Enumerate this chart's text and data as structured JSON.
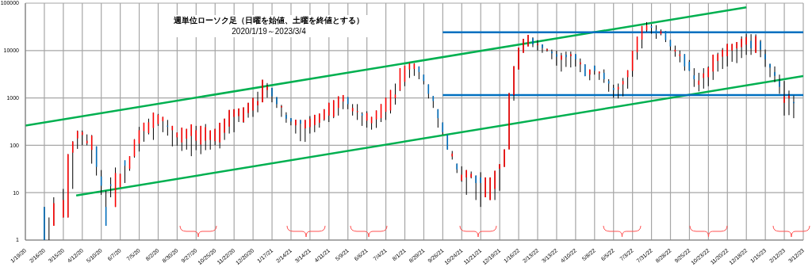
{
  "chart_data": {
    "type": "candlestick",
    "title": "週単位ローソク足（日曜を始値、土曜を終値とする）",
    "subtitle": "2020/1/19～2023/3/4",
    "xlim": [
      "2020-01-19",
      "2023-03-12"
    ],
    "xticks": [
      {
        "value": "2020-01-19",
        "label": "1/19/20"
      },
      {
        "value": "2020-02-16",
        "label": "2/16/20"
      },
      {
        "value": "2020-03-15",
        "label": "3/15/20"
      },
      {
        "value": "2020-04-12",
        "label": "4/12/20"
      },
      {
        "value": "2020-05-10",
        "label": "5/10/20"
      },
      {
        "value": "2020-06-07",
        "label": "6/7/20"
      },
      {
        "value": "2020-07-05",
        "label": "7/5/20"
      },
      {
        "value": "2020-08-02",
        "label": "8/2/20"
      },
      {
        "value": "2020-08-30",
        "label": "8/30/20"
      },
      {
        "value": "2020-09-27",
        "label": "9/27/20"
      },
      {
        "value": "2020-10-25",
        "label": "10/25/20"
      },
      {
        "value": "2020-11-22",
        "label": "11/22/20"
      },
      {
        "value": "2020-12-20",
        "label": "12/20/20"
      },
      {
        "value": "2021-01-17",
        "label": "1/17/21"
      },
      {
        "value": "2021-02-14",
        "label": "2/14/21"
      },
      {
        "value": "2021-03-14",
        "label": "3/14/21"
      },
      {
        "value": "2021-04-11",
        "label": "4/11/21"
      },
      {
        "value": "2021-05-09",
        "label": "5/9/21"
      },
      {
        "value": "2021-06-06",
        "label": "6/6/21"
      },
      {
        "value": "2021-07-04",
        "label": "7/4/21"
      },
      {
        "value": "2021-08-01",
        "label": "8/1/21"
      },
      {
        "value": "2021-08-29",
        "label": "8/29/21"
      },
      {
        "value": "2021-09-26",
        "label": "9/26/21"
      },
      {
        "value": "2021-10-24",
        "label": "10/24/21"
      },
      {
        "value": "2021-11-21",
        "label": "11/21/21"
      },
      {
        "value": "2021-12-19",
        "label": "12/19/21"
      },
      {
        "value": "2022-01-16",
        "label": "1/16/22"
      },
      {
        "value": "2022-02-13",
        "label": "2/13/22"
      },
      {
        "value": "2022-03-13",
        "label": "3/13/22"
      },
      {
        "value": "2022-04-10",
        "label": "4/10/22"
      },
      {
        "value": "2022-05-08",
        "label": "5/8/22"
      },
      {
        "value": "2022-06-05",
        "label": "6/5/22"
      },
      {
        "value": "2022-07-03",
        "label": "7/3/22"
      },
      {
        "value": "2022-07-31",
        "label": "7/31/22"
      },
      {
        "value": "2022-08-28",
        "label": "8/28/22"
      },
      {
        "value": "2022-09-25",
        "label": "9/25/22"
      },
      {
        "value": "2022-10-23",
        "label": "10/23/22"
      },
      {
        "value": "2022-11-20",
        "label": "11/20/22"
      },
      {
        "value": "2022-12-18",
        "label": "12/18/22"
      },
      {
        "value": "2023-01-15",
        "label": "1/15/23"
      },
      {
        "value": "2023-02-12",
        "label": "2/12/23"
      },
      {
        "value": "2023-03-12",
        "label": "3/12/23"
      }
    ],
    "ylim": [
      1,
      100000
    ],
    "yticks": [
      1,
      10,
      100,
      1000,
      10000,
      100000
    ],
    "log": true,
    "grid": true,
    "series": [
      {
        "type": "candlestick",
        "x": [
          "2020-02-16",
          "2020-02-23",
          "2020-03-01",
          "2020-03-15",
          "2020-03-22",
          "2020-03-29",
          "2020-04-05",
          "2020-04-12",
          "2020-04-19",
          "2020-04-26",
          "2020-05-03",
          "2020-05-10",
          "2020-05-17",
          "2020-05-24",
          "2020-05-31",
          "2020-06-07",
          "2020-06-14",
          "2020-06-21",
          "2020-06-28",
          "2020-07-05",
          "2020-07-12",
          "2020-07-19",
          "2020-07-26",
          "2020-08-02",
          "2020-08-09",
          "2020-08-16",
          "2020-08-23",
          "2020-08-30",
          "2020-09-06",
          "2020-09-13",
          "2020-09-20",
          "2020-09-27",
          "2020-10-04",
          "2020-10-11",
          "2020-10-18",
          "2020-10-25",
          "2020-11-01",
          "2020-11-08",
          "2020-11-15",
          "2020-11-22",
          "2020-11-29",
          "2020-12-06",
          "2020-12-13",
          "2020-12-20",
          "2020-12-27",
          "2021-01-03",
          "2021-01-10",
          "2021-01-17",
          "2021-01-24",
          "2021-01-31",
          "2021-02-07",
          "2021-02-14",
          "2021-02-21",
          "2021-02-28",
          "2021-03-07",
          "2021-03-14",
          "2021-03-21",
          "2021-03-28",
          "2021-04-04",
          "2021-04-11",
          "2021-04-18",
          "2021-04-25",
          "2021-05-02",
          "2021-05-09",
          "2021-05-16",
          "2021-05-23",
          "2021-05-30",
          "2021-06-06",
          "2021-06-13",
          "2021-06-20",
          "2021-06-27",
          "2021-07-04",
          "2021-07-11",
          "2021-07-18",
          "2021-07-25",
          "2021-08-01",
          "2021-08-08",
          "2021-08-15",
          "2021-08-22",
          "2021-08-29",
          "2021-09-05",
          "2021-09-12",
          "2021-09-19",
          "2021-09-26",
          "2021-10-03",
          "2021-10-10",
          "2021-10-17",
          "2021-10-24",
          "2021-10-31",
          "2021-11-07",
          "2021-11-14",
          "2021-11-21",
          "2021-11-28",
          "2021-12-05",
          "2021-12-12",
          "2021-12-19",
          "2021-12-26",
          "2022-01-02",
          "2022-01-09",
          "2022-01-16",
          "2022-01-23",
          "2022-01-30",
          "2022-02-06",
          "2022-02-13",
          "2022-02-20",
          "2022-02-27",
          "2022-03-06",
          "2022-03-13",
          "2022-03-20",
          "2022-03-27",
          "2022-04-03",
          "2022-04-10",
          "2022-04-17",
          "2022-04-24",
          "2022-05-01",
          "2022-05-08",
          "2022-05-15",
          "2022-05-22",
          "2022-05-29",
          "2022-06-05",
          "2022-06-12",
          "2022-06-19",
          "2022-06-26",
          "2022-07-03",
          "2022-07-10",
          "2022-07-17",
          "2022-07-24",
          "2022-07-31",
          "2022-08-07",
          "2022-08-14",
          "2022-08-21",
          "2022-08-28",
          "2022-09-04",
          "2022-09-11",
          "2022-09-18",
          "2022-09-25",
          "2022-10-02",
          "2022-10-09",
          "2022-10-16",
          "2022-10-23",
          "2022-10-30",
          "2022-11-06",
          "2022-11-13",
          "2022-11-20",
          "2022-11-27",
          "2022-12-04",
          "2022-12-11",
          "2022-12-18",
          "2022-12-25",
          "2023-01-01",
          "2023-01-08",
          "2023-01-15",
          "2023-01-22",
          "2023-01-29",
          "2023-02-05",
          "2023-02-12",
          "2023-02-19",
          "2023-02-26"
        ],
        "ohlc": [
          [
            5,
            5,
            1,
            1
          ],
          [
            1,
            3,
            1,
            1
          ],
          [
            2,
            8,
            2,
            6
          ],
          [
            3,
            12,
            3,
            7
          ],
          [
            3,
            65,
            3,
            65
          ],
          [
            70,
            122,
            12,
            120
          ],
          [
            140,
            205,
            84,
            200
          ],
          [
            165,
            205,
            100,
            190
          ],
          [
            110,
            170,
            100,
            125
          ],
          [
            80,
            165,
            41,
            160
          ],
          [
            95,
            95,
            23,
            35
          ],
          [
            22,
            30,
            9,
            14
          ],
          [
            5,
            11,
            2,
            2
          ],
          [
            15,
            21,
            8,
            14
          ],
          [
            5,
            34,
            5,
            26
          ],
          [
            13,
            25,
            13,
            25
          ],
          [
            48,
            48,
            16,
            37
          ],
          [
            32,
            59,
            29,
            59
          ],
          [
            58,
            135,
            55,
            133
          ],
          [
            108,
            245,
            74,
            208
          ],
          [
            200,
            300,
            119,
            300
          ],
          [
            181,
            365,
            170,
            306
          ],
          [
            233,
            492,
            130,
            490
          ],
          [
            281,
            460,
            257,
            440
          ],
          [
            322,
            398,
            189,
            398
          ],
          [
            260,
            343,
            160,
            255
          ],
          [
            208,
            257,
            95,
            257
          ],
          [
            147,
            186,
            98,
            186
          ],
          [
            115,
            236,
            76,
            236
          ],
          [
            138,
            222,
            81,
            222
          ],
          [
            157,
            277,
            59,
            277
          ],
          [
            125,
            257,
            79,
            208
          ],
          [
            104,
            257,
            65,
            257
          ],
          [
            125,
            281,
            79,
            242
          ],
          [
            130,
            206,
            81,
            206
          ],
          [
            122,
            222,
            100,
            222
          ],
          [
            115,
            299,
            86,
            299
          ],
          [
            184,
            365,
            130,
            365
          ],
          [
            248,
            557,
            177,
            557
          ],
          [
            398,
            578,
            189,
            578
          ],
          [
            413,
            600,
            310,
            600
          ],
          [
            310,
            631,
            299,
            631
          ],
          [
            480,
            789,
            383,
            789
          ],
          [
            543,
            1010,
            398,
            1000
          ],
          [
            697,
            1350,
            498,
            861
          ],
          [
            809,
            2420,
            809,
            2420
          ],
          [
            1470,
            2060,
            1010,
            1770
          ],
          [
            1630,
            1630,
            809,
            1080
          ],
          [
            1040,
            1040,
            615,
            741
          ],
          [
            631,
            714,
            398,
            671
          ],
          [
            440,
            498,
            300,
            365
          ],
          [
            374,
            374,
            264,
            318
          ],
          [
            264,
            347,
            177,
            347
          ],
          [
            343,
            343,
            122,
            285
          ],
          [
            227,
            343,
            118,
            343
          ],
          [
            242,
            413,
            177,
            365
          ],
          [
            267,
            440,
            189,
            440
          ],
          [
            299,
            468,
            236,
            468
          ],
          [
            347,
            578,
            330,
            578
          ],
          [
            424,
            789,
            310,
            789
          ],
          [
            398,
            894,
            374,
            894
          ],
          [
            615,
            1080,
            424,
            1080
          ],
          [
            839,
            1150,
            578,
            1150
          ],
          [
            1040,
            1040,
            578,
            741
          ],
          [
            523,
            741,
            424,
            615
          ],
          [
            520,
            741,
            343,
            530
          ],
          [
            462,
            498,
            257,
            424
          ],
          [
            330,
            523,
            236,
            480
          ],
          [
            292,
            398,
            214,
            398
          ],
          [
            352,
            543,
            233,
            543
          ],
          [
            374,
            741,
            310,
            741
          ],
          [
            510,
            1010,
            343,
            1010
          ],
          [
            543,
            1470,
            470,
            1470
          ],
          [
            988,
            2010,
            723,
            1180
          ],
          [
            1440,
            4240,
            1400,
            4240
          ],
          [
            2190,
            4800,
            1770,
            4800
          ],
          [
            3980,
            5430,
            2640,
            5430
          ],
          [
            4080,
            5400,
            2920,
            5300
          ],
          [
            4620,
            4620,
            2480,
            3520
          ],
          [
            3100,
            3100,
            1930,
            2280
          ],
          [
            1930,
            1930,
            975,
            1220
          ],
          [
            1100,
            1100,
            615,
            861
          ],
          [
            578,
            578,
            236,
            374
          ],
          [
            303,
            303,
            168,
            189
          ],
          [
            168,
            168,
            81,
            81
          ],
          [
            58,
            76,
            50,
            67
          ],
          [
            41,
            41,
            26,
            31
          ],
          [
            18,
            36,
            17,
            24
          ],
          [
            21,
            30,
            9,
            30
          ],
          [
            21,
            28,
            20,
            25
          ],
          [
            23,
            23,
            7,
            16
          ],
          [
            21,
            27,
            5,
            16
          ],
          [
            8,
            21,
            8,
            21
          ],
          [
            7,
            21,
            7,
            21
          ],
          [
            12,
            29,
            7,
            29
          ],
          [
            32,
            40,
            11,
            40
          ],
          [
            35,
            82,
            35,
            82
          ],
          [
            82,
            1270,
            82,
            1270
          ],
          [
            1150,
            4680,
            873,
            4680
          ],
          [
            3980,
            11500,
            3980,
            11500
          ],
          [
            8940,
            17700,
            8940,
            17700
          ],
          [
            12200,
            21400,
            12200,
            21400
          ],
          [
            18200,
            19000,
            11800,
            13500
          ],
          [
            13000,
            16600,
            10000,
            13800
          ],
          [
            13500,
            13500,
            8940,
            11300
          ],
          [
            10000,
            11000,
            9500,
            10800
          ],
          [
            9500,
            10500,
            6550,
            8730
          ],
          [
            8400,
            9900,
            4800,
            7400
          ],
          [
            6380,
            8940,
            3600,
            7890
          ],
          [
            8190,
            9500,
            4510,
            7230
          ],
          [
            7600,
            9500,
            4400,
            8400
          ],
          [
            8400,
            8400,
            4600,
            6550
          ],
          [
            5110,
            6800,
            3500,
            5640
          ],
          [
            5110,
            5110,
            2880,
            2880
          ],
          [
            3100,
            3980,
            2360,
            3980
          ],
          [
            4800,
            4800,
            3100,
            3740
          ],
          [
            3300,
            3600,
            2400,
            3600
          ],
          [
            3390,
            4000,
            2080,
            2480
          ],
          [
            2280,
            2480,
            1350,
            2010
          ],
          [
            1630,
            1900,
            1010,
            1470
          ],
          [
            1510,
            2010,
            975,
            1710
          ],
          [
            1930,
            2640,
            1080,
            2280
          ],
          [
            2740,
            3840,
            1570,
            3840
          ],
          [
            3740,
            9880,
            2800,
            9880
          ],
          [
            9160,
            19600,
            6400,
            19600
          ],
          [
            17100,
            33000,
            11100,
            33000
          ],
          [
            26700,
            39800,
            25000,
            34300
          ],
          [
            33000,
            36000,
            22700,
            30300
          ],
          [
            27400,
            34300,
            17700,
            22700
          ],
          [
            22200,
            28000,
            21000,
            25800
          ],
          [
            25800,
            25800,
            15100,
            16700
          ],
          [
            16700,
            16700,
            10000,
            12200
          ],
          [
            9510,
            12700,
            7410,
            10400
          ],
          [
            7600,
            10000,
            5640,
            8400
          ],
          [
            8400,
            8400,
            3740,
            4620
          ],
          [
            5780,
            6300,
            3740,
            3740
          ],
          [
            2990,
            4240,
            1710,
            2480
          ],
          [
            1890,
            3390,
            1380,
            2330
          ],
          [
            2640,
            4240,
            1570,
            3300
          ],
          [
            2740,
            4620,
            1770,
            4400
          ],
          [
            3600,
            8200,
            2400,
            8200
          ],
          [
            6000,
            9000,
            3600,
            8400
          ],
          [
            7410,
            11300,
            4080,
            10400
          ],
          [
            7600,
            13800,
            4620,
            13800
          ],
          [
            10000,
            13800,
            5780,
            13800
          ],
          [
            11100,
            15100,
            5430,
            15100
          ],
          [
            11800,
            19900,
            6950,
            17700
          ],
          [
            13300,
            22700,
            8100,
            19300
          ],
          [
            16000,
            22200,
            8100,
            11100
          ],
          [
            8940,
            22000,
            8940,
            20100
          ],
          [
            15600,
            16700,
            7230,
            10400
          ],
          [
            8400,
            10500,
            4510,
            6550
          ],
          [
            5240,
            5240,
            2740,
            4360
          ],
          [
            3520,
            4620,
            2150,
            2920
          ],
          [
            2280,
            3100,
            1220,
            1710
          ],
          [
            789,
            2280,
            424,
            1080
          ],
          [
            975,
            1430,
            433,
            1120
          ],
          [
            820,
            1120,
            374,
            790
          ]
        ],
        "colors": [
          "#0070c0",
          "#0070c0",
          "#ff0000",
          "#ff0000",
          "#ff0000",
          "#ff0000",
          "#ff0000",
          "#ff0000",
          "#ff0000",
          "#ff0000",
          "#0070c0",
          "#0070c0",
          "#0070c0",
          "#0070c0",
          "#ff0000",
          "#ff0000",
          "#0070c0",
          "#ff0000",
          "#ff0000",
          "#ff0000",
          "#ff0000",
          "#ff0000",
          "#ff0000",
          "#ff0000",
          "#ff0000",
          "#0070c0",
          "#ff0000",
          "#ff0000",
          "#ff0000",
          "#ff0000",
          "#ff0000",
          "#ff0000",
          "#ff0000",
          "#ff0000",
          "#ff0000",
          "#ff0000",
          "#ff0000",
          "#ff0000",
          "#ff0000",
          "#ff0000",
          "#ff0000",
          "#ff0000",
          "#ff0000",
          "#ff0000",
          "#ff0000",
          "#ff0000",
          "#ff0000",
          "#0070c0",
          "#0070c0",
          "#ff0000",
          "#0070c0",
          "#0070c0",
          "#ff0000",
          "#0070c0",
          "#ff0000",
          "#ff0000",
          "#ff0000",
          "#ff0000",
          "#ff0000",
          "#ff0000",
          "#ff0000",
          "#ff0000",
          "#ff0000",
          "#0070c0",
          "#ff0000",
          "#ff0000",
          "#0070c0",
          "#ff0000",
          "#ff0000",
          "#ff0000",
          "#ff0000",
          "#ff0000",
          "#ff0000",
          "#ff0000",
          "#ff0000",
          "#ff0000",
          "#ff0000",
          "#ff0000",
          "#0070c0",
          "#0070c0",
          "#0070c0",
          "#0070c0",
          "#0070c0",
          "#0070c0",
          "#0070c0",
          "#ff0000",
          "#0070c0",
          "#ff0000",
          "#ff0000",
          "#ff0000",
          "#0070c0",
          "#0070c0",
          "#ff0000",
          "#ff0000",
          "#ff0000",
          "#ff0000",
          "#ff0000",
          "#ff0000",
          "#ff0000",
          "#ff0000",
          "#ff0000",
          "#ff0000",
          "#0070c0",
          "#ff0000",
          "#0070c0",
          "#ff0000",
          "#0070c0",
          "#0070c0",
          "#ff0000",
          "#0070c0",
          "#ff0000",
          "#0070c0",
          "#ff0000",
          "#0070c0",
          "#ff0000",
          "#0070c0",
          "#ff0000",
          "#0070c0",
          "#0070c0",
          "#0070c0",
          "#ff0000",
          "#ff0000",
          "#ff0000",
          "#ff0000",
          "#ff0000",
          "#ff0000",
          "#ff0000",
          "#0070c0",
          "#0070c0",
          "#ff0000",
          "#0070c0",
          "#0070c0",
          "#ff0000",
          "#ff0000",
          "#0070c0",
          "#0070c0",
          "#0070c0",
          "#ff0000",
          "#ff0000",
          "#ff0000",
          "#ff0000",
          "#ff0000",
          "#ff0000",
          "#ff0000",
          "#ff0000",
          "#ff0000",
          "#ff0000",
          "#ff0000",
          "#0070c0",
          "#ff0000",
          "#0070c0",
          "#0070c0",
          "#0070c0",
          "#0070c0",
          "#0070c0",
          "#ff0000",
          "#ff0000",
          "#0070c0"
        ]
      },
      {
        "type": "line",
        "color": "#00b050",
        "x": [
          "2020-01-19",
          "2022-12-18"
        ],
        "values": [
          260,
          81800
        ]
      },
      {
        "type": "line",
        "color": "#00b050",
        "x": [
          "2020-04-03",
          "2023-03-12"
        ],
        "values": [
          8.7,
          2900
        ]
      },
      {
        "type": "line",
        "color": "#0070c0",
        "x": [
          "2021-09-26",
          "2023-03-12"
        ],
        "values": [
          24200,
          24200
        ]
      },
      {
        "type": "line",
        "color": "#0070c0",
        "x": [
          "2021-09-26",
          "2023-03-12"
        ],
        "values": [
          1150,
          1150
        ]
      }
    ]
  }
}
